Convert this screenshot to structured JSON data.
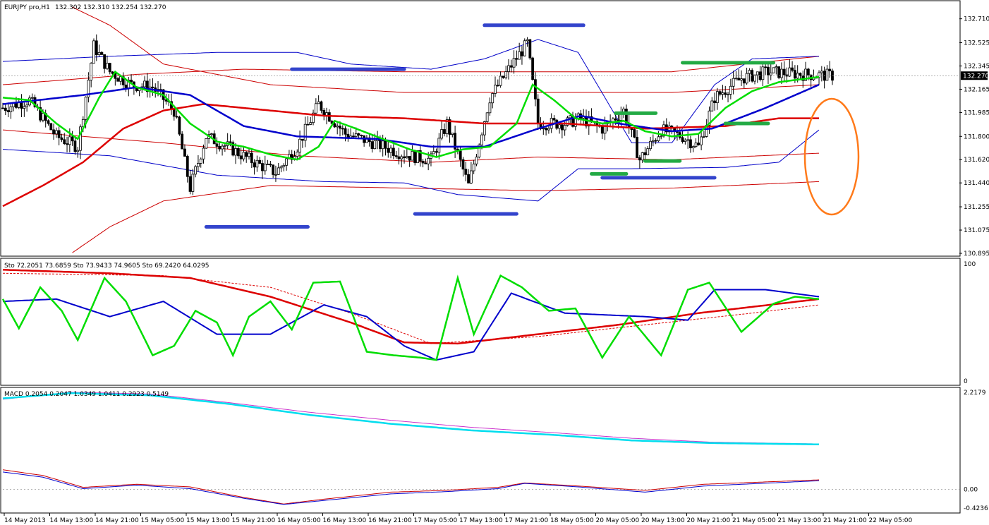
{
  "header": {
    "symbol": "EURJPY pro,H1",
    "ohlc": "132.302 132.310 132.254 132.270"
  },
  "colors": {
    "bg": "#ffffff",
    "frame": "#000000",
    "grid": "#d0d0d0",
    "bull": "#ffffff",
    "bear": "#000000",
    "bb_outer": "#0000c8",
    "bb_inner": "#cc0000",
    "ma_fast": "#00dd00",
    "ma_mid": "#0000cc",
    "ma_slow": "#dd0000",
    "level_blue": "#3344cc",
    "level_green": "#22aa44",
    "ellipse": "#ff7a1a",
    "macd_cyan": "#00ddee",
    "macd_magenta": "#cc33cc"
  },
  "chart_data": [
    {
      "type": "candlestick",
      "name": "price",
      "price_label": "132.270",
      "y_ticks": [
        "132.710",
        "132.525",
        "132.345",
        "132.165",
        "131.985",
        "131.800",
        "131.620",
        "131.440",
        "131.255",
        "131.075",
        "130.895"
      ],
      "ylim": [
        130.895,
        132.79
      ],
      "current_price": 132.27,
      "close_path": [
        [
          0,
          132.02
        ],
        [
          10,
          132.08
        ],
        [
          20,
          131.8
        ],
        [
          28,
          131.72
        ],
        [
          34,
          132.5
        ],
        [
          40,
          132.3
        ],
        [
          48,
          132.2
        ],
        [
          56,
          132.18
        ],
        [
          64,
          132.0
        ],
        [
          70,
          131.4
        ],
        [
          76,
          131.8
        ],
        [
          84,
          131.72
        ],
        [
          94,
          131.6
        ],
        [
          102,
          131.52
        ],
        [
          110,
          131.72
        ],
        [
          118,
          132.05
        ],
        [
          128,
          131.82
        ],
        [
          140,
          131.74
        ],
        [
          150,
          131.66
        ],
        [
          160,
          131.62
        ],
        [
          166,
          131.9
        ],
        [
          174,
          131.42
        ],
        [
          182,
          132.1
        ],
        [
          190,
          132.35
        ],
        [
          196,
          132.52
        ],
        [
          200,
          131.9
        ],
        [
          210,
          131.9
        ],
        [
          216,
          131.94
        ],
        [
          224,
          131.86
        ],
        [
          232,
          132.0
        ],
        [
          238,
          131.62
        ],
        [
          246,
          131.85
        ],
        [
          254,
          131.8
        ],
        [
          260,
          131.72
        ],
        [
          266,
          132.1
        ],
        [
          276,
          132.25
        ],
        [
          286,
          132.3
        ],
        [
          300,
          132.28
        ],
        [
          310,
          132.27
        ]
      ],
      "bollinger_outer": {
        "upper": [
          [
            0,
            132.38
          ],
          [
            40,
            132.42
          ],
          [
            80,
            132.45
          ],
          [
            110,
            132.45
          ],
          [
            130,
            132.36
          ],
          [
            160,
            132.32
          ],
          [
            180,
            132.4
          ],
          [
            200,
            132.55
          ],
          [
            215,
            132.45
          ],
          [
            235,
            131.75
          ],
          [
            250,
            131.75
          ],
          [
            266,
            132.2
          ],
          [
            280,
            132.4
          ],
          [
            305,
            132.42
          ]
        ],
        "lower": [
          [
            0,
            131.7
          ],
          [
            40,
            131.65
          ],
          [
            80,
            131.5
          ],
          [
            120,
            131.45
          ],
          [
            150,
            131.44
          ],
          [
            170,
            131.35
          ],
          [
            200,
            131.3
          ],
          [
            215,
            131.55
          ],
          [
            235,
            131.55
          ],
          [
            270,
            131.56
          ],
          [
            290,
            131.6
          ],
          [
            305,
            131.85
          ]
        ]
      },
      "bollinger_inner_a": {
        "upper": [
          [
            0,
            132.2
          ],
          [
            50,
            132.28
          ],
          [
            90,
            132.32
          ],
          [
            150,
            132.3
          ],
          [
            200,
            132.3
          ],
          [
            250,
            132.3
          ],
          [
            305,
            132.42
          ]
        ],
        "lower": [
          [
            0,
            131.85
          ],
          [
            60,
            131.75
          ],
          [
            110,
            131.65
          ],
          [
            160,
            131.6
          ],
          [
            200,
            131.64
          ],
          [
            250,
            131.62
          ],
          [
            305,
            131.67
          ]
        ]
      },
      "bollinger_inner_b": {
        "upper": [
          [
            26,
            132.8
          ],
          [
            40,
            132.66
          ],
          [
            60,
            132.36
          ],
          [
            100,
            132.2
          ],
          [
            150,
            132.14
          ],
          [
            200,
            132.14
          ],
          [
            250,
            132.14
          ],
          [
            305,
            132.2
          ]
        ],
        "lower": [
          [
            26,
            130.9
          ],
          [
            40,
            131.1
          ],
          [
            60,
            131.3
          ],
          [
            100,
            131.42
          ],
          [
            150,
            131.4
          ],
          [
            200,
            131.38
          ],
          [
            250,
            131.4
          ],
          [
            305,
            131.45
          ]
        ]
      },
      "ma_fast": [
        [
          0,
          132.1
        ],
        [
          10,
          132.08
        ],
        [
          20,
          131.9
        ],
        [
          28,
          131.78
        ],
        [
          36,
          132.1
        ],
        [
          42,
          132.3
        ],
        [
          50,
          132.18
        ],
        [
          60,
          132.12
        ],
        [
          70,
          131.9
        ],
        [
          80,
          131.76
        ],
        [
          90,
          131.72
        ],
        [
          100,
          131.66
        ],
        [
          110,
          131.62
        ],
        [
          118,
          131.72
        ],
        [
          124,
          131.92
        ],
        [
          132,
          131.86
        ],
        [
          142,
          131.78
        ],
        [
          152,
          131.7
        ],
        [
          162,
          131.64
        ],
        [
          172,
          131.7
        ],
        [
          182,
          131.72
        ],
        [
          192,
          131.9
        ],
        [
          198,
          132.2
        ],
        [
          206,
          132.08
        ],
        [
          214,
          131.94
        ],
        [
          224,
          131.9
        ],
        [
          232,
          131.92
        ],
        [
          240,
          131.84
        ],
        [
          250,
          131.8
        ],
        [
          260,
          131.82
        ],
        [
          270,
          132.02
        ],
        [
          280,
          132.15
        ],
        [
          290,
          132.22
        ],
        [
          305,
          132.26
        ]
      ],
      "ma_mid": [
        [
          0,
          132.05
        ],
        [
          30,
          132.12
        ],
        [
          50,
          132.18
        ],
        [
          70,
          132.12
        ],
        [
          90,
          131.88
        ],
        [
          110,
          131.8
        ],
        [
          140,
          131.78
        ],
        [
          160,
          131.72
        ],
        [
          180,
          131.72
        ],
        [
          200,
          131.86
        ],
        [
          216,
          131.96
        ],
        [
          230,
          131.9
        ],
        [
          250,
          131.84
        ],
        [
          265,
          131.86
        ],
        [
          285,
          132.02
        ],
        [
          305,
          132.2
        ]
      ],
      "ma_slow": [
        [
          0,
          131.26
        ],
        [
          15,
          131.42
        ],
        [
          30,
          131.6
        ],
        [
          45,
          131.86
        ],
        [
          60,
          132.0
        ],
        [
          75,
          132.05
        ],
        [
          90,
          132.02
        ],
        [
          120,
          131.96
        ],
        [
          150,
          131.94
        ],
        [
          180,
          131.9
        ],
        [
          210,
          131.9
        ],
        [
          240,
          131.86
        ],
        [
          270,
          131.88
        ],
        [
          290,
          131.94
        ],
        [
          305,
          131.94
        ]
      ],
      "levels_blue": [
        [
          76,
          114,
          131.1
        ],
        [
          108,
          150,
          132.32
        ],
        [
          180,
          217,
          132.66
        ],
        [
          154,
          192,
          131.2
        ],
        [
          224,
          266,
          131.48
        ]
      ],
      "levels_green": [
        [
          254,
          288,
          132.37
        ],
        [
          229,
          244,
          131.98
        ],
        [
          220,
          233,
          131.51
        ],
        [
          240,
          253,
          131.61
        ],
        [
          270,
          286,
          131.9
        ]
      ],
      "ellipse_note": true
    },
    {
      "type": "line",
      "name": "stochastic",
      "legend": "Sto 72.2051 73.6859  Sto 73.9433 74.9605  Sto 69.2420 64.0295",
      "y_ticks": [
        "100",
        "0"
      ],
      "ylim": [
        0,
        100
      ],
      "fast": [
        [
          0,
          70
        ],
        [
          6,
          45
        ],
        [
          14,
          80
        ],
        [
          22,
          60
        ],
        [
          28,
          35
        ],
        [
          38,
          88
        ],
        [
          46,
          68
        ],
        [
          56,
          22
        ],
        [
          64,
          30
        ],
        [
          72,
          60
        ],
        [
          80,
          50
        ],
        [
          86,
          22
        ],
        [
          92,
          55
        ],
        [
          100,
          68
        ],
        [
          108,
          44
        ],
        [
          116,
          84
        ],
        [
          126,
          85
        ],
        [
          136,
          25
        ],
        [
          146,
          22
        ],
        [
          156,
          20
        ],
        [
          162,
          18
        ],
        [
          170,
          88
        ],
        [
          176,
          40
        ],
        [
          186,
          90
        ],
        [
          194,
          80
        ],
        [
          204,
          60
        ],
        [
          214,
          62
        ],
        [
          224,
          20
        ],
        [
          234,
          55
        ],
        [
          246,
          22
        ],
        [
          256,
          78
        ],
        [
          264,
          84
        ],
        [
          276,
          42
        ],
        [
          288,
          66
        ],
        [
          296,
          72
        ],
        [
          305,
          70
        ]
      ],
      "mid": [
        [
          0,
          68
        ],
        [
          20,
          70
        ],
        [
          40,
          55
        ],
        [
          60,
          68
        ],
        [
          80,
          40
        ],
        [
          100,
          40
        ],
        [
          120,
          65
        ],
        [
          136,
          55
        ],
        [
          150,
          30
        ],
        [
          162,
          18
        ],
        [
          176,
          25
        ],
        [
          190,
          75
        ],
        [
          210,
          58
        ],
        [
          240,
          55
        ],
        [
          256,
          52
        ],
        [
          266,
          78
        ],
        [
          285,
          78
        ],
        [
          305,
          72
        ]
      ],
      "slow": [
        [
          0,
          95
        ],
        [
          40,
          92
        ],
        [
          70,
          88
        ],
        [
          100,
          72
        ],
        [
          130,
          50
        ],
        [
          150,
          33
        ],
        [
          170,
          32
        ],
        [
          200,
          40
        ],
        [
          230,
          48
        ],
        [
          260,
          58
        ],
        [
          290,
          66
        ],
        [
          305,
          70
        ]
      ],
      "slow_signal": [
        [
          0,
          92
        ],
        [
          60,
          90
        ],
        [
          100,
          80
        ],
        [
          130,
          58
        ],
        [
          160,
          32
        ],
        [
          200,
          38
        ],
        [
          240,
          48
        ],
        [
          280,
          58
        ],
        [
          305,
          65
        ]
      ]
    },
    {
      "type": "line",
      "name": "macd",
      "legend": "MACD 0.2054 0.2047  1.0349 1.0411  0.2923 0.5149",
      "y_ticks": [
        "2.2179",
        "0.00",
        "-0.4236"
      ],
      "ylim": [
        -0.4236,
        2.2179
      ],
      "macd_line": [
        [
          0,
          2.08
        ],
        [
          25,
          2.2
        ],
        [
          55,
          2.15
        ],
        [
          85,
          1.95
        ],
        [
          115,
          1.7
        ],
        [
          145,
          1.5
        ],
        [
          175,
          1.35
        ],
        [
          205,
          1.25
        ],
        [
          235,
          1.12
        ],
        [
          265,
          1.06
        ],
        [
          305,
          1.03
        ]
      ],
      "signal_line": [
        [
          0,
          2.06
        ],
        [
          25,
          2.22
        ],
        [
          55,
          2.18
        ],
        [
          85,
          1.98
        ],
        [
          115,
          1.76
        ],
        [
          145,
          1.58
        ],
        [
          175,
          1.42
        ],
        [
          205,
          1.3
        ],
        [
          235,
          1.17
        ],
        [
          265,
          1.08
        ],
        [
          305,
          1.04
        ]
      ],
      "osc_a": [
        [
          0,
          0.45
        ],
        [
          15,
          0.32
        ],
        [
          30,
          0.05
        ],
        [
          50,
          0.12
        ],
        [
          70,
          0.06
        ],
        [
          90,
          -0.18
        ],
        [
          105,
          -0.33
        ],
        [
          120,
          -0.22
        ],
        [
          145,
          -0.06
        ],
        [
          165,
          -0.02
        ],
        [
          185,
          0.05
        ],
        [
          195,
          0.15
        ],
        [
          215,
          0.08
        ],
        [
          240,
          -0.02
        ],
        [
          262,
          0.12
        ],
        [
          305,
          0.22
        ]
      ],
      "osc_b": [
        [
          0,
          0.4
        ],
        [
          15,
          0.28
        ],
        [
          30,
          0.02
        ],
        [
          50,
          0.1
        ],
        [
          70,
          0.02
        ],
        [
          90,
          -0.2
        ],
        [
          105,
          -0.34
        ],
        [
          120,
          -0.25
        ],
        [
          145,
          -0.1
        ],
        [
          165,
          -0.05
        ],
        [
          185,
          0.02
        ],
        [
          195,
          0.14
        ],
        [
          215,
          0.06
        ],
        [
          240,
          -0.06
        ],
        [
          262,
          0.08
        ],
        [
          305,
          0.2
        ]
      ],
      "zero_level": 0
    }
  ],
  "x_labels": [
    "14 May 2013",
    "14 May 13:00",
    "14 May 21:00",
    "15 May 05:00",
    "15 May 13:00",
    "15 May 21:00",
    "16 May 05:00",
    "16 May 13:00",
    "16 May 21:00",
    "17 May 05:00",
    "17 May 13:00",
    "17 May 21:00",
    "18 May 05:00",
    "20 May 05:00",
    "20 May 13:00",
    "20 May 21:00",
    "21 May 05:00",
    "21 May 13:00",
    "21 May 21:00",
    "22 May 05:00"
  ]
}
